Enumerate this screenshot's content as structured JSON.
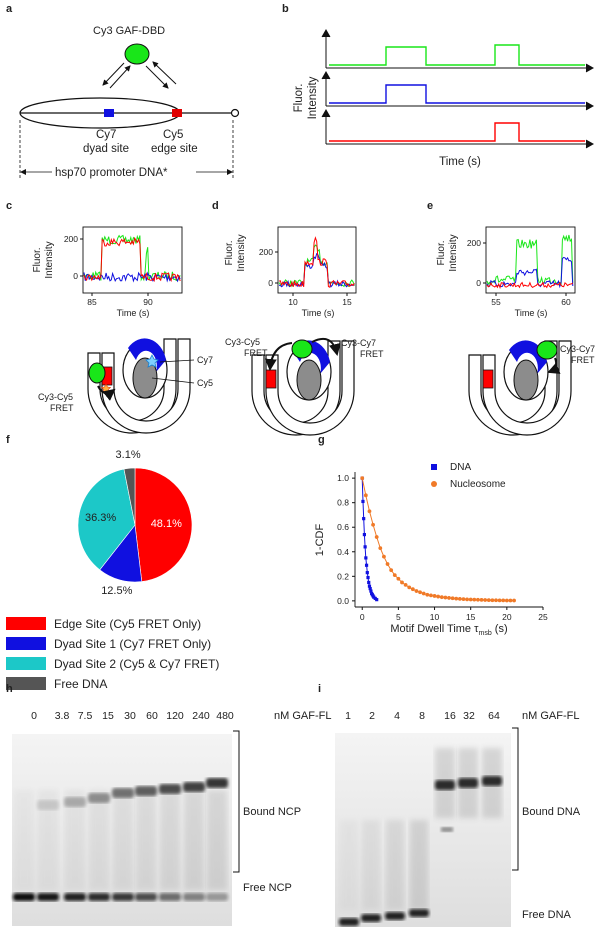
{
  "panels": {
    "a": "a",
    "b": "b",
    "c": "c",
    "d": "d",
    "e": "e",
    "f": "f",
    "g": "g",
    "h": "h",
    "i": "i"
  },
  "a": {
    "gaf_label": "Cy3 GAF-DBD",
    "cy7_label": "Cy7",
    "dyad_label": "dyad site",
    "cy5_label": "Cy5",
    "edge_label": "edge site",
    "dna_label": "hsp70 promoter DNA*"
  },
  "b": {
    "ylabel_1": "Fluor.",
    "ylabel_2": "Intensity",
    "xlabel": "Time (s)"
  },
  "traces": {
    "ylabel_1": "Fluor.",
    "ylabel_2": "Intensity",
    "xlabel": "Time (s)",
    "c": {
      "x_ticks": [
        "85",
        "90"
      ],
      "y_ticks": [
        "200",
        "0"
      ]
    },
    "d": {
      "x_ticks": [
        "10",
        "15"
      ],
      "y_ticks": [
        "200",
        "0"
      ]
    },
    "e": {
      "x_ticks": [
        "55",
        "60"
      ],
      "y_ticks": [
        "200",
        "0"
      ]
    }
  },
  "cartoons": {
    "c_cy7": "Cy7",
    "c_cy5": "Cy5",
    "c_fret_1": "Cy3-Cy5",
    "c_fret_2": "FRET",
    "d_left_1": "Cy3-Cy5",
    "d_left_2": "FRET",
    "d_right_1": "Cy3-Cy7",
    "d_right_2": "FRET",
    "e_right_1": "Cy3-Cy7",
    "e_right_2": "FRET"
  },
  "colors": {
    "red": "#ff0000",
    "blue": "#1010e0",
    "cyan": "#1cc8c8",
    "green": "#19e619",
    "gray": "#555555",
    "orange": "#f07a28"
  },
  "legend_f": [
    {
      "label": "Edge Site (Cy5 FRET Only)",
      "color": "#ff0000"
    },
    {
      "label": "Dyad Site 1 (Cy7 FRET Only)",
      "color": "#1010e0"
    },
    {
      "label": "Dyad Site 2 (Cy5 & Cy7 FRET)",
      "color": "#1cc8c8"
    },
    {
      "label": "Free DNA",
      "color": "#555555"
    }
  ],
  "chart_data": [
    {
      "type": "pie",
      "labels": [
        "Edge Site (Cy5 FRET Only)",
        "Dyad Site 1 (Cy7 FRET Only)",
        "Dyad Site 2 (Cy5 & Cy7 FRET)",
        "Free DNA"
      ],
      "values": [
        48.1,
        12.5,
        36.3,
        3.1
      ],
      "value_labels": [
        "48.1%",
        "12.5%",
        "36.3%",
        "3.1%"
      ],
      "colors": [
        "#ff0000",
        "#1010e0",
        "#1cc8c8",
        "#555555"
      ]
    },
    {
      "type": "scatter",
      "xlabel_prefix": "Motif Dwell Time ",
      "xlabel_tau": "τ",
      "xlabel_sub": "msb",
      "xlabel_suffix": " (s)",
      "ylabel": "1-CDF",
      "xlim": [
        -1,
        25
      ],
      "ylim": [
        -0.05,
        1.05
      ],
      "x_ticks": [
        "0",
        "5",
        "10",
        "15",
        "20",
        "25"
      ],
      "y_ticks": [
        "0.0",
        "0.2",
        "0.4",
        "0.6",
        "0.8",
        "1.0"
      ],
      "series": [
        {
          "name": "DNA",
          "color": "#1010e0",
          "x": [
            0,
            0.1,
            0.2,
            0.3,
            0.4,
            0.5,
            0.6,
            0.7,
            0.8,
            0.9,
            1.0,
            1.1,
            1.2,
            1.3,
            1.4,
            1.5,
            1.6,
            1.8,
            2.0
          ],
          "y": [
            1.0,
            0.81,
            0.67,
            0.54,
            0.44,
            0.35,
            0.29,
            0.23,
            0.19,
            0.15,
            0.12,
            0.1,
            0.08,
            0.06,
            0.05,
            0.04,
            0.03,
            0.02,
            0.01
          ]
        },
        {
          "name": "Nucleosome",
          "color": "#f07a28",
          "x": [
            0,
            0.5,
            1,
            1.5,
            2,
            2.5,
            3,
            3.5,
            4,
            4.5,
            5,
            5.5,
            6,
            6.5,
            7,
            7.5,
            8,
            8.5,
            9,
            9.5,
            10,
            10.5,
            11,
            11.5,
            12,
            12.5,
            13,
            13.5,
            14,
            14.5,
            15,
            15.5,
            16,
            16.5,
            17,
            17.5,
            18,
            18.5,
            19,
            19.5,
            20,
            20.5,
            21
          ],
          "y": [
            1.0,
            0.86,
            0.73,
            0.62,
            0.52,
            0.43,
            0.36,
            0.3,
            0.25,
            0.21,
            0.18,
            0.15,
            0.13,
            0.11,
            0.095,
            0.08,
            0.07,
            0.06,
            0.05,
            0.045,
            0.04,
            0.035,
            0.03,
            0.027,
            0.024,
            0.021,
            0.018,
            0.016,
            0.014,
            0.012,
            0.011,
            0.01,
            0.009,
            0.008,
            0.007,
            0.006,
            0.005,
            0.005,
            0.004,
            0.004,
            0.003,
            0.003,
            0.003
          ]
        }
      ]
    }
  ],
  "gel_h": {
    "lanes": [
      "0",
      "3.8",
      "7.5",
      "15",
      "30",
      "60",
      "120",
      "240",
      "480"
    ],
    "unit": "nM GAF-FL",
    "bound_label": "Bound NCP",
    "free_label": "Free NCP"
  },
  "gel_i": {
    "lanes": [
      "1",
      "2",
      "4",
      "8",
      "16",
      "32",
      "64"
    ],
    "unit": "nM GAF-FL",
    "bound_label": "Bound DNA",
    "free_label": "Free DNA"
  }
}
